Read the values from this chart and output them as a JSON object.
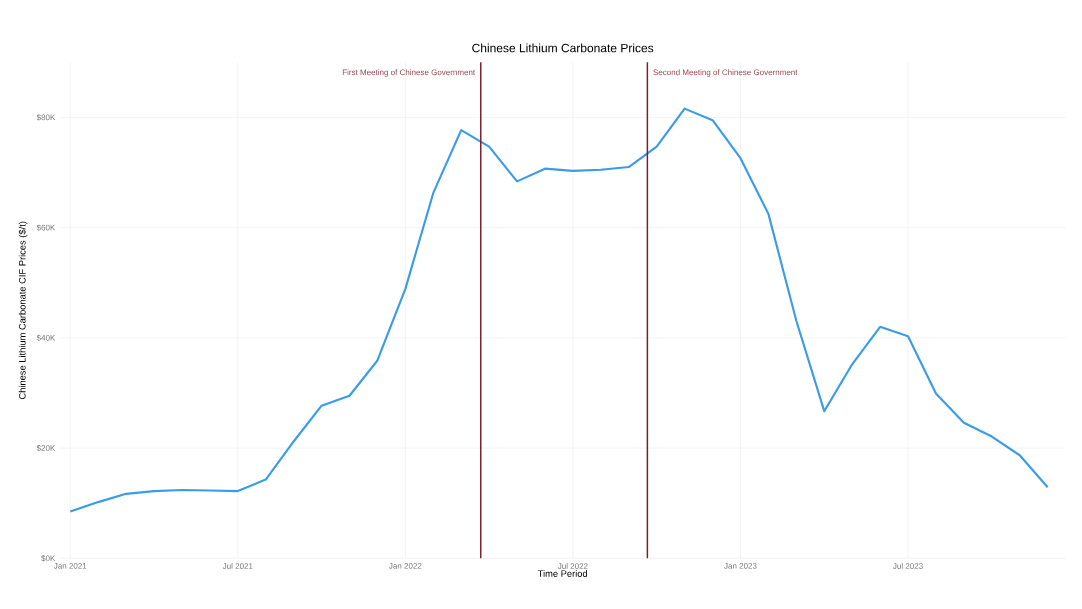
{
  "chart_data": {
    "type": "line",
    "title": "Chinese Lithium Carbonate Prices",
    "xlabel": "Time Period",
    "ylabel": "Chinese Lithium Carbonate CIF Prices ($/t)",
    "x": [
      "2021-01",
      "2021-02",
      "2021-03",
      "2021-04",
      "2021-05",
      "2021-06",
      "2021-07",
      "2021-08",
      "2021-09",
      "2021-10",
      "2021-11",
      "2021-12",
      "2022-01",
      "2022-02",
      "2022-03",
      "2022-04",
      "2022-05",
      "2022-06",
      "2022-07",
      "2022-08",
      "2022-09",
      "2022-10",
      "2022-11",
      "2022-12",
      "2023-01",
      "2023-02",
      "2023-03",
      "2023-04",
      "2023-05",
      "2023-06",
      "2023-07",
      "2023-08",
      "2023-09",
      "2023-10",
      "2023-11",
      "2023-12"
    ],
    "series": [
      {
        "color": "#3a9be8",
        "values": [
          8.5,
          10.2,
          11.7,
          12.2,
          12.4,
          12.3,
          12.2,
          14.3,
          21.2,
          27.7,
          29.5,
          35.9,
          48.9,
          66.3,
          77.7,
          74.7,
          68.4,
          70.7,
          70.3,
          70.5,
          71.0,
          74.7,
          81.6,
          79.5,
          72.6,
          62.5,
          43.1,
          26.7,
          35.2,
          42.0,
          40.3,
          29.9,
          24.6,
          22.1,
          18.7,
          12.9
        ]
      }
    ],
    "xlim": [
      "2020-12-20",
      "2023-12-20"
    ],
    "xticks": [
      {
        "value": "2021-01",
        "label": "Jan 2021"
      },
      {
        "value": "2021-07",
        "label": "Jul 2021"
      },
      {
        "value": "2022-01",
        "label": "Jan 2022"
      },
      {
        "value": "2022-07",
        "label": "Jul 2022"
      },
      {
        "value": "2023-01",
        "label": "Jan 2023"
      },
      {
        "value": "2023-07",
        "label": "Jul 2023"
      }
    ],
    "ylim": [
      0,
      90
    ],
    "yticks": [
      {
        "value": 0,
        "label": "$0K"
      },
      {
        "value": 20,
        "label": "$20K"
      },
      {
        "value": 40,
        "label": "$40K"
      },
      {
        "value": 60,
        "label": "$60K"
      },
      {
        "value": 80,
        "label": "$80K"
      }
    ],
    "ref_lines": [
      {
        "axis": "x",
        "value": "2022-03-22",
        "label": "First Meeting of Chinese Government",
        "color": "#7b1c2c"
      },
      {
        "axis": "x",
        "value": "2022-09-21",
        "label": "Second Meeting of Chinese Government",
        "color": "#7b1c2c"
      }
    ],
    "grid": true,
    "line_style": "solid",
    "marker": "none"
  }
}
